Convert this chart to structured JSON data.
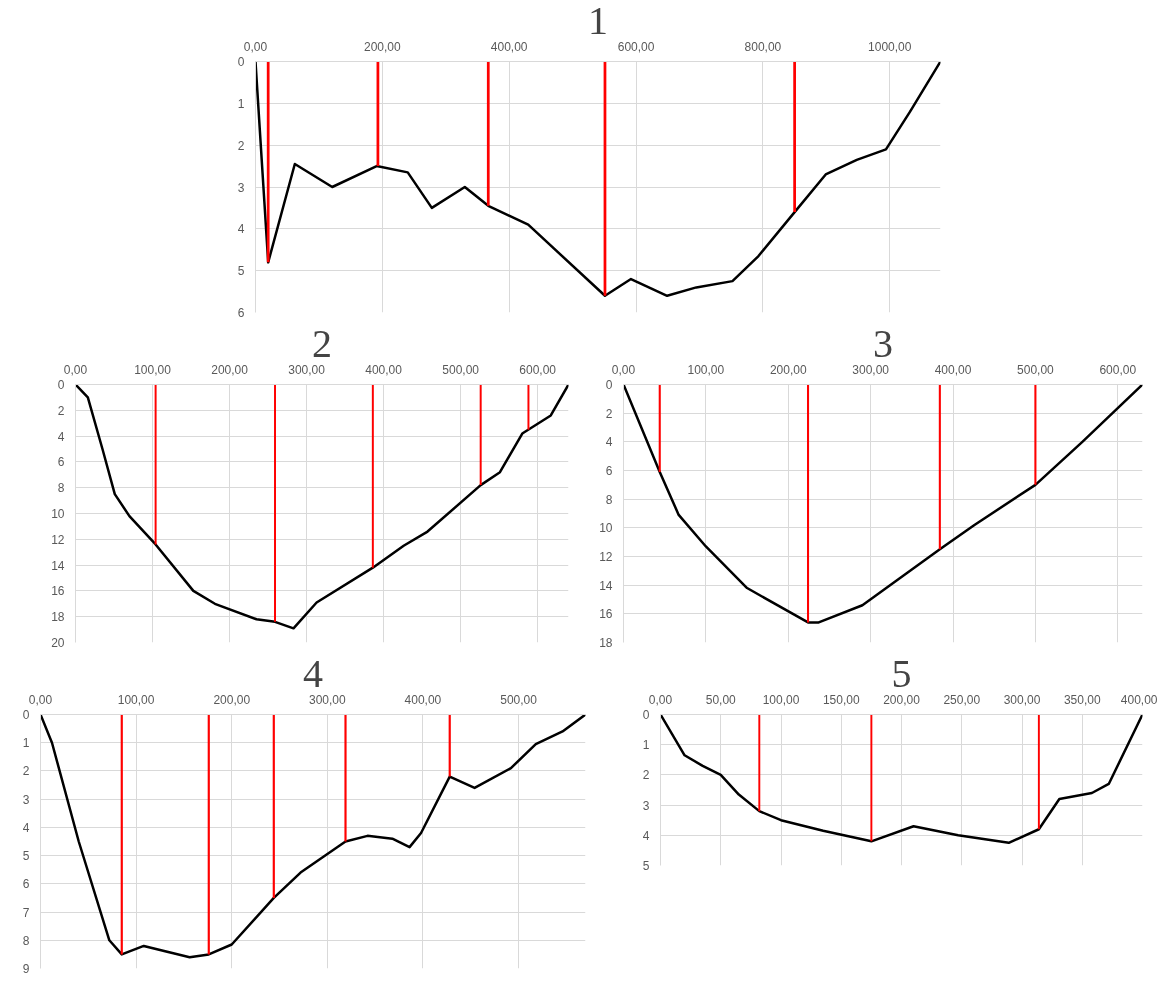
{
  "chart_data": [
    {
      "type": "line",
      "title": "1",
      "xlim": [
        0,
        1080
      ],
      "ylim": [
        6,
        0
      ],
      "grid": true,
      "xticks": [
        {
          "value": 0,
          "label": "0,00"
        },
        {
          "value": 200,
          "label": "200,00"
        },
        {
          "value": 400,
          "label": "400,00"
        },
        {
          "value": 600,
          "label": "600,00"
        },
        {
          "value": 800,
          "label": "800,00"
        },
        {
          "value": 1000,
          "label": "1000,00"
        }
      ],
      "yticks": [
        0,
        1,
        2,
        3,
        4,
        5,
        6
      ],
      "series": [
        {
          "color": "#000000",
          "x": [
            0,
            20,
            62,
            121,
            191,
            240,
            278,
            330,
            367,
            430,
            551,
            592,
            649,
            695,
            752,
            793,
            850,
            899,
            948,
            994,
            1032,
            1080
          ],
          "values": [
            0,
            4.8,
            2.45,
            3.0,
            2.5,
            2.65,
            3.5,
            3.0,
            3.45,
            3.9,
            5.6,
            5.2,
            5.6,
            5.4,
            5.25,
            4.65,
            3.6,
            2.7,
            2.35,
            2.1,
            1.2,
            0
          ]
        },
        {
          "type": "bar",
          "color": "#ff0000",
          "x": [
            20,
            193,
            367,
            551,
            850
          ],
          "values": [
            4.8,
            2.5,
            3.45,
            5.6,
            3.6
          ]
        }
      ]
    },
    {
      "type": "line",
      "title": "2",
      "xlim": [
        0,
        640
      ],
      "ylim": [
        20,
        0
      ],
      "grid": true,
      "xticks": [
        {
          "value": 0,
          "label": "0,00"
        },
        {
          "value": 100,
          "label": "100,00"
        },
        {
          "value": 200,
          "label": "200,00"
        },
        {
          "value": 300,
          "label": "300,00"
        },
        {
          "value": 400,
          "label": "400,00"
        },
        {
          "value": 500,
          "label": "500,00"
        },
        {
          "value": 600,
          "label": "600,00"
        }
      ],
      "yticks": [
        0,
        2,
        4,
        6,
        8,
        10,
        12,
        14,
        16,
        18,
        20
      ],
      "series": [
        {
          "color": "#000000",
          "x": [
            0,
            16,
            35,
            51,
            70,
            104,
            153,
            181,
            235,
            259,
            283,
            313,
            386,
            426,
            457,
            526,
            551,
            580,
            617,
            640
          ],
          "values": [
            0,
            1,
            5,
            8.5,
            10.2,
            12.4,
            16,
            17,
            18.2,
            18.4,
            18.9,
            16.9,
            14.2,
            12.5,
            11.4,
            7.8,
            6.8,
            3.8,
            2.4,
            0
          ]
        },
        {
          "type": "bar",
          "color": "#ff0000",
          "x": [
            104,
            259,
            386,
            526,
            588
          ],
          "values": [
            12.4,
            18.4,
            14.2,
            7.8,
            3.5
          ]
        }
      ]
    },
    {
      "type": "line",
      "title": "3",
      "xlim": [
        0,
        630
      ],
      "ylim": [
        18,
        0
      ],
      "grid": true,
      "xticks": [
        {
          "value": 0,
          "label": "0,00"
        },
        {
          "value": 100,
          "label": "100,00"
        },
        {
          "value": 200,
          "label": "200,00"
        },
        {
          "value": 300,
          "label": "300,00"
        },
        {
          "value": 400,
          "label": "400,00"
        },
        {
          "value": 500,
          "label": "500,00"
        },
        {
          "value": 600,
          "label": "600,00"
        }
      ],
      "yticks": [
        0,
        2,
        4,
        6,
        8,
        10,
        12,
        14,
        16,
        18
      ],
      "series": [
        {
          "color": "#000000",
          "x": [
            0,
            44,
            67,
            100,
            150,
            224,
            237,
            290,
            384,
            426,
            500,
            557,
            630
          ],
          "values": [
            0,
            6.1,
            9.1,
            11.3,
            14.2,
            16.6,
            16.6,
            15.4,
            11.5,
            9.8,
            7.0,
            4.0,
            0
          ]
        },
        {
          "type": "bar",
          "color": "#ff0000",
          "x": [
            44,
            224,
            384,
            500
          ],
          "values": [
            6.1,
            16.6,
            11.5,
            7.0
          ]
        }
      ]
    },
    {
      "type": "line",
      "title": "4",
      "xlim": [
        0,
        570
      ],
      "ylim": [
        9,
        0
      ],
      "grid": true,
      "xticks": [
        {
          "value": 0,
          "label": "0,00"
        },
        {
          "value": 100,
          "label": "100,00"
        },
        {
          "value": 200,
          "label": "200,00"
        },
        {
          "value": 300,
          "label": "300,00"
        },
        {
          "value": 400,
          "label": "400,00"
        },
        {
          "value": 500,
          "label": "500,00"
        }
      ],
      "yticks": [
        0,
        1,
        2,
        3,
        4,
        5,
        6,
        7,
        8,
        9
      ],
      "series": [
        {
          "color": "#000000",
          "x": [
            0,
            12,
            40,
            72,
            85,
            108,
            156,
            176,
            200,
            244,
            272,
            319,
            342,
            368,
            386,
            398,
            428,
            454,
            492,
            518,
            546,
            570
          ],
          "values": [
            0,
            1.0,
            4.5,
            8.0,
            8.5,
            8.2,
            8.6,
            8.5,
            8.15,
            6.5,
            5.6,
            4.5,
            4.3,
            4.4,
            4.7,
            4.2,
            2.2,
            2.6,
            1.9,
            1.05,
            0.6,
            0
          ]
        },
        {
          "type": "bar",
          "color": "#ff0000",
          "x": [
            85,
            176,
            244,
            319,
            428
          ],
          "values": [
            8.5,
            8.5,
            6.5,
            4.5,
            2.2
          ]
        }
      ]
    },
    {
      "type": "line",
      "title": "5",
      "xlim": [
        0,
        400
      ],
      "ylim": [
        5,
        0
      ],
      "grid": true,
      "xticks": [
        {
          "value": 0,
          "label": "0,00"
        },
        {
          "value": 50,
          "label": "50,00"
        },
        {
          "value": 100,
          "label": "100,00"
        },
        {
          "value": 150,
          "label": "150,00"
        },
        {
          "value": 200,
          "label": "200,00"
        },
        {
          "value": 250,
          "label": "250,00"
        },
        {
          "value": 300,
          "label": "300,00"
        },
        {
          "value": 350,
          "label": "350,00"
        },
        {
          "value": 400,
          "label": "400,00"
        }
      ],
      "yticks": [
        0,
        1,
        2,
        3,
        4,
        5
      ],
      "series": [
        {
          "color": "#000000",
          "x": [
            0,
            20,
            35,
            50,
            65,
            82,
            100,
            135,
            175,
            210,
            247,
            289,
            314,
            331,
            358,
            372,
            400
          ],
          "values": [
            0,
            1.35,
            1.7,
            2.0,
            2.65,
            3.2,
            3.5,
            3.85,
            4.2,
            3.7,
            4.0,
            4.25,
            3.8,
            2.8,
            2.6,
            2.3,
            0
          ]
        },
        {
          "type": "bar",
          "color": "#ff0000",
          "x": [
            82,
            175,
            314
          ],
          "values": [
            3.2,
            4.2,
            3.8
          ]
        }
      ]
    }
  ]
}
